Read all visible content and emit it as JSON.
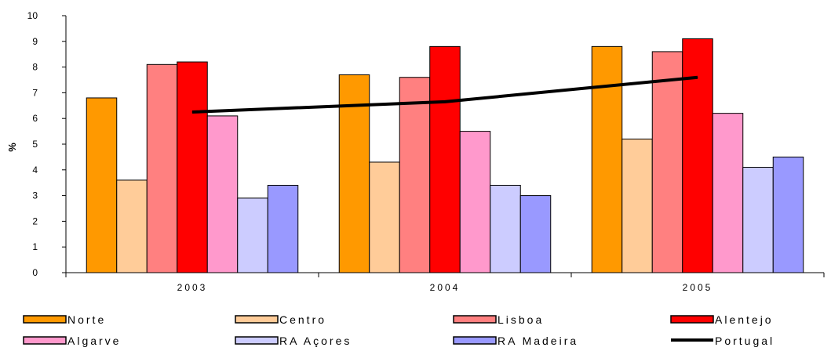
{
  "chart_data": {
    "type": "bar",
    "categories": [
      "2003",
      "2004",
      "2005"
    ],
    "ylabel": "%",
    "xlabel": "",
    "ylim": [
      0,
      10
    ],
    "yticks": [
      0,
      1,
      2,
      3,
      4,
      5,
      6,
      7,
      8,
      9,
      10
    ],
    "grid": false,
    "legend_position": "bottom",
    "series": [
      {
        "name": "Norte",
        "color": "#ff9900",
        "values": [
          6.8,
          7.7,
          8.8
        ]
      },
      {
        "name": "Centro",
        "color": "#ffcc99",
        "values": [
          3.6,
          4.3,
          5.2
        ]
      },
      {
        "name": "Lisboa",
        "color": "#ff8080",
        "values": [
          8.1,
          7.6,
          8.6
        ]
      },
      {
        "name": "Alentejo",
        "color": "#ff0000",
        "values": [
          8.2,
          8.8,
          9.1
        ]
      },
      {
        "name": "Algarve",
        "color": "#ff99cc",
        "values": [
          6.1,
          5.5,
          6.2
        ]
      },
      {
        "name": "RA Açores",
        "color": "#ccccff",
        "values": [
          2.9,
          3.4,
          4.1
        ]
      },
      {
        "name": "RA Madeira",
        "color": "#9999ff",
        "values": [
          3.4,
          3.0,
          4.5
        ]
      }
    ],
    "line_series": {
      "name": "Portugal",
      "color": "#000000",
      "values": [
        6.25,
        6.65,
        7.6
      ]
    }
  }
}
